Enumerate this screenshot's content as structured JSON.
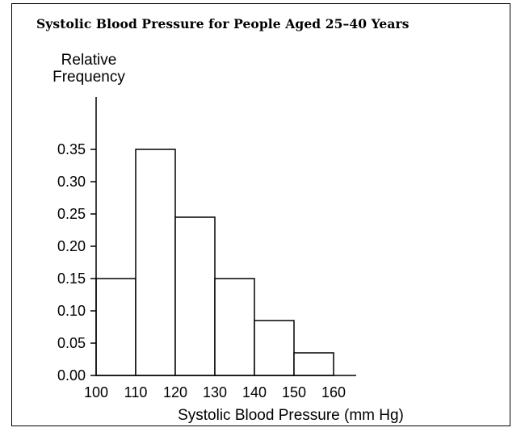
{
  "chart_data": {
    "type": "bar",
    "title": "Systolic Blood Pressure for People Aged 25–40 Years",
    "ylabel_lines": [
      "Relative",
      "Frequency"
    ],
    "xlabel": "Systolic Blood Pressure (mm Hg)",
    "bins": [
      {
        "from": 100,
        "to": 110,
        "value": 0.15
      },
      {
        "from": 110,
        "to": 120,
        "value": 0.35
      },
      {
        "from": 120,
        "to": 130,
        "value": 0.245
      },
      {
        "from": 130,
        "to": 140,
        "value": 0.15
      },
      {
        "from": 140,
        "to": 150,
        "value": 0.085
      },
      {
        "from": 150,
        "to": 160,
        "value": 0.035
      }
    ],
    "x_ticks": [
      "100",
      "110",
      "120",
      "130",
      "140",
      "150",
      "160"
    ],
    "y_ticks": [
      "0.00",
      "0.05",
      "0.10",
      "0.15",
      "0.20",
      "0.25",
      "0.30",
      "0.35"
    ],
    "xlim": [
      100,
      165
    ],
    "ylim": [
      0,
      0.35
    ],
    "grid": false,
    "bar_fill": "#ffffff",
    "bar_stroke": "#000000"
  }
}
